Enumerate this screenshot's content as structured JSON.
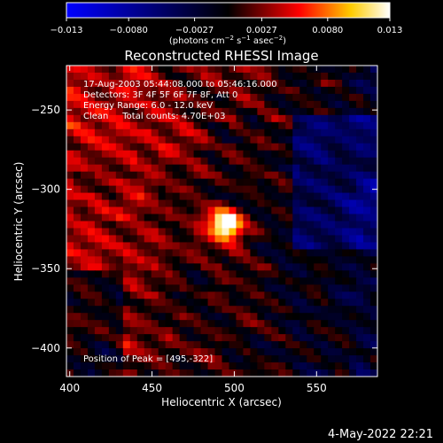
{
  "colorbar": {
    "tick_labels": [
      "−0.013",
      "−0.0080",
      "−0.0027",
      "0.0027",
      "0.0080",
      "0.013"
    ],
    "tick_values": [
      -0.013,
      -0.008,
      -0.0027,
      0.0027,
      0.008,
      0.013
    ],
    "unit_main": "(photons cm",
    "unit_exp1": "−2",
    "unit_mid": " s",
    "unit_exp2": "−1",
    "unit_mid2": " asec",
    "unit_exp3": "−2",
    "unit_close": ")",
    "range": [
      -0.013,
      0.013
    ],
    "colors": [
      "#0000ff",
      "#000000",
      "#ff0000",
      "#ffff00",
      "#ffffff"
    ]
  },
  "chart_data": {
    "type": "heatmap",
    "title": "Reconstructed RHESSI Image",
    "xlabel": "Heliocentric X (arcsec)",
    "ylabel": "Heliocentric Y (arcsec)",
    "xlim": [
      398,
      587
    ],
    "ylim": [
      -418,
      -222
    ],
    "x_ticks": [
      400,
      450,
      500,
      550
    ],
    "x_tick_labels": [
      "400",
      "450",
      "500",
      "550"
    ],
    "y_ticks": [
      -250,
      -300,
      -350,
      -400
    ],
    "y_tick_labels": [
      "−250",
      "−300",
      "−350",
      "−400"
    ],
    "peak": {
      "x": 495,
      "y": -322,
      "value": 0.013
    },
    "info_lines": [
      "17-Aug-2003 05:44:08.000 to 05:46:16.000",
      "Detectors: 3F 4F 5F 6F 7F 8F, Att 0",
      "Energy Range: 6.0 - 12.0 keV",
      "Clean     Total counts: 4.70E+03"
    ],
    "peak_label": "Position of Peak = [495,-322]"
  },
  "footer": {
    "date": "4-May-2022 22:21"
  }
}
